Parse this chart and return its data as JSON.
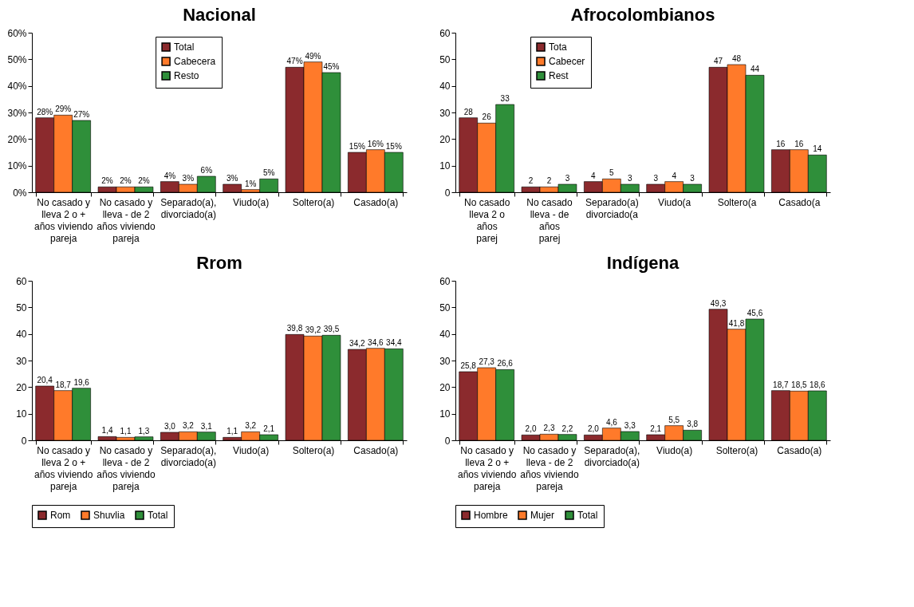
{
  "chart_data": [
    {
      "type": "bar",
      "title": "Nacional",
      "categories": [
        "No casado y\nlleva 2 o +\naños viviendo\npareja",
        "No casado y\nlleva - de 2\naños viviendo\npareja",
        "Separado(a),\ndivorciado(a)",
        "Viudo(a)",
        "Soltero(a)",
        "Casado(a)"
      ],
      "series": [
        {
          "name": "Total",
          "color": "#8b2a2d",
          "values": [
            28,
            2,
            4,
            3,
            47,
            15
          ],
          "value_labels": [
            "28%",
            "2%",
            "4%",
            "3%",
            "47%",
            "15%"
          ]
        },
        {
          "name": "Cabecera",
          "color": "#ff7a2a",
          "values": [
            29,
            2,
            3,
            1,
            49,
            16
          ],
          "value_labels": [
            "29%",
            "2%",
            "3%",
            "1%",
            "49%",
            "16%"
          ]
        },
        {
          "name": "Resto",
          "color": "#2f8f3a",
          "values": [
            27,
            2,
            6,
            5,
            45,
            15
          ],
          "value_labels": [
            "27%",
            "2%",
            "6%",
            "5%",
            "45%",
            "15%"
          ]
        }
      ],
      "ylim": [
        0,
        60
      ],
      "yticks": [
        {
          "value": 0,
          "label": "0%"
        },
        {
          "value": 10,
          "label": "10%"
        },
        {
          "value": 20,
          "label": "20%"
        },
        {
          "value": 30,
          "label": "30%"
        },
        {
          "value": 40,
          "label": "40%"
        },
        {
          "value": 50,
          "label": "50%"
        },
        {
          "value": 60,
          "label": "60%"
        }
      ],
      "grid": false,
      "legend": "top"
    },
    {
      "type": "bar",
      "title": "Afrocolombianos",
      "categories": [
        "No casado\nlleva 2 o\naños\nparej",
        "No casado\nlleva - de\naños\nparej",
        "Separado(a)\ndivorciado(a",
        "Viudo(a",
        "Soltero(a",
        "Casado(a"
      ],
      "series": [
        {
          "name": "Tota",
          "color": "#8b2a2d",
          "values": [
            28,
            2,
            4,
            3,
            47,
            16
          ]
        },
        {
          "name": "Cabecer",
          "color": "#ff7a2a",
          "values": [
            26,
            2,
            5,
            4,
            48,
            16
          ]
        },
        {
          "name": "Rest",
          "color": "#2f8f3a",
          "values": [
            33,
            3,
            3,
            3,
            44,
            14
          ]
        }
      ],
      "data_labels": true,
      "ylim": [
        0,
        60
      ],
      "yticks": [
        0,
        10,
        20,
        30,
        40,
        50,
        60
      ],
      "grid": false,
      "legend": "top"
    },
    {
      "type": "bar",
      "title": "Rrom",
      "categories": [
        "No casado y\nlleva 2 o +\naños viviendo\npareja",
        "No casado y\nlleva - de 2\naños viviendo\npareja",
        "Separado(a),\ndivorciado(a)",
        "Viudo(a)",
        "Soltero(a)",
        "Casado(a)"
      ],
      "series": [
        {
          "name": "Rom",
          "color": "#8b2a2d",
          "values": [
            20.4,
            1.4,
            3.0,
            1.1,
            39.8,
            34.2
          ],
          "value_labels": [
            "20,4",
            "1,4",
            "3,0",
            "1,1",
            "39,8",
            "34,2"
          ]
        },
        {
          "name": "Shuvlia",
          "color": "#ff7a2a",
          "values": [
            18.7,
            1.1,
            3.2,
            3.2,
            39.2,
            34.6
          ],
          "value_labels": [
            "18,7",
            "1,1",
            "3,2",
            "3,2",
            "39,2",
            "34,6"
          ]
        },
        {
          "name": "Total",
          "color": "#2f8f3a",
          "values": [
            19.6,
            1.3,
            3.1,
            2.1,
            39.5,
            34.4
          ],
          "value_labels": [
            "19,6",
            "1,3",
            "3,1",
            "2,1",
            "39,5",
            "34,4"
          ]
        }
      ],
      "ylim": [
        0,
        60
      ],
      "yticks": [
        0,
        10,
        20,
        30,
        40,
        50,
        60
      ],
      "grid": false,
      "legend": "bottom"
    },
    {
      "type": "bar",
      "title": "Indígena",
      "categories": [
        "No casado y\nlleva 2 o +\naños viviendo\npareja",
        "No casado y\nlleva - de 2\naños viviendo\npareja",
        "Separado(a),\ndivorciado(a)",
        "Viudo(a)",
        "Soltero(a)",
        "Casado(a)"
      ],
      "series": [
        {
          "name": "Hombre",
          "color": "#8b2a2d",
          "values": [
            25.8,
            2.0,
            2.0,
            2.1,
            49.3,
            18.7
          ],
          "value_labels": [
            "25,8",
            "2,0",
            "2,0",
            "2,1",
            "49,3",
            "18,7"
          ]
        },
        {
          "name": "Mujer",
          "color": "#ff7a2a",
          "values": [
            27.3,
            2.3,
            4.6,
            5.5,
            41.8,
            18.5
          ],
          "value_labels": [
            "27,3",
            "2,3",
            "4,6",
            "5,5",
            "41,8",
            "18,5"
          ]
        },
        {
          "name": "Total",
          "color": "#2f8f3a",
          "values": [
            26.6,
            2.2,
            3.3,
            3.8,
            45.6,
            18.6
          ],
          "value_labels": [
            "26,6",
            "2,2",
            "3,3",
            "3,8",
            "45,6",
            "18,6"
          ]
        }
      ],
      "ylim": [
        0,
        60
      ],
      "yticks": [
        0,
        10,
        20,
        30,
        40,
        50,
        60
      ],
      "grid": false,
      "legend": "bottom"
    }
  ]
}
